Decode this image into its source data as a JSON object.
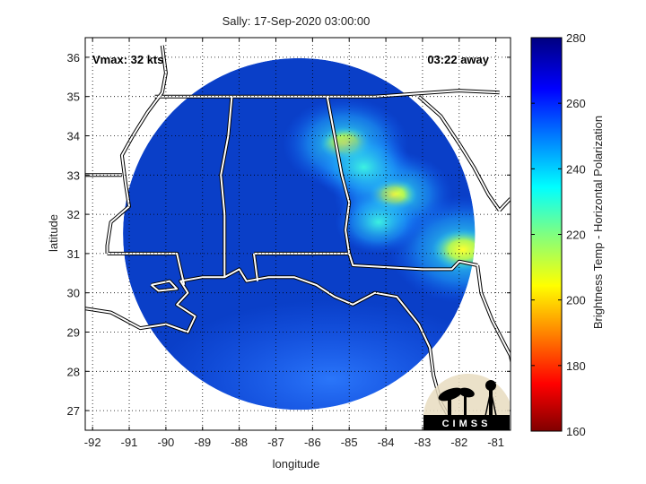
{
  "chart_data": {
    "type": "heatmap",
    "title": "Sally: 17-Sep-2020 03:00:00",
    "xlabel": "longitude",
    "ylabel": "latitude",
    "xlim": [
      -92.2,
      -80.6
    ],
    "ylim": [
      26.5,
      36.5
    ],
    "x_ticks": [
      -92,
      -91,
      -90,
      -89,
      -88,
      -87,
      -86,
      -85,
      -84,
      -83,
      -82,
      -81
    ],
    "y_ticks": [
      27,
      28,
      29,
      30,
      31,
      32,
      33,
      34,
      35,
      36
    ],
    "grid": true,
    "colorbar": {
      "label": "Brightness Temp - Horizontal Polarization",
      "range": [
        160,
        280
      ],
      "ticks": [
        160,
        180,
        200,
        220,
        240,
        260,
        280
      ],
      "colormap": "jet"
    },
    "swath": {
      "center_lon": -86.37,
      "center_lat": 31.5,
      "radius_deg": 4.8
    },
    "background_value": 272,
    "cold_regions": [
      {
        "lon": -85.1,
        "lat": 33.8,
        "value": 228
      },
      {
        "lon": -83.8,
        "lat": 32.5,
        "value": 232
      },
      {
        "lon": -81.9,
        "lat": 31.1,
        "value": 215
      },
      {
        "lon": -84.6,
        "lat": 33.2,
        "value": 245
      },
      {
        "lon": -84.2,
        "lat": 31.8,
        "value": 252
      }
    ],
    "annotations": {
      "vmax": "Vmax: 32 kts",
      "time_away": "03:22 away",
      "logo": "CIMSS"
    }
  },
  "colors": {
    "swath_base": "#0a3fc8",
    "swath_light": "#1e64ff",
    "border": "#ffffff",
    "grid": "#000000"
  }
}
